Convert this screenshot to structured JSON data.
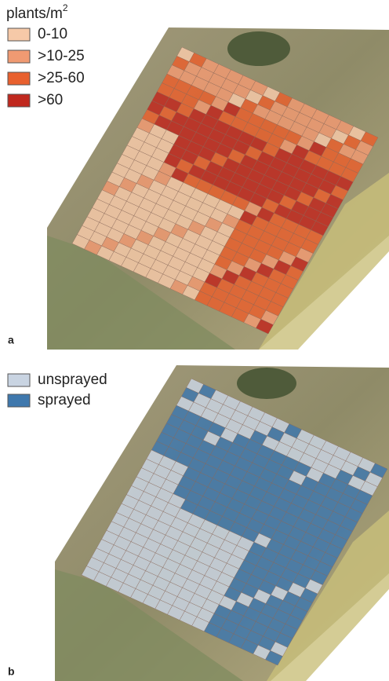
{
  "panel_a": {
    "legend_title": "plants/m",
    "legend_title_superscript": "2",
    "legend": [
      {
        "label": "0-10",
        "color": "#f6c9a8"
      },
      {
        "label": ">10-25",
        "color": "#f09a72"
      },
      {
        "label": ">25-60",
        "color": "#e8602e"
      },
      {
        "label": ">60",
        "color": "#c0281e"
      }
    ],
    "label": "a"
  },
  "panel_b": {
    "legend": [
      {
        "label": "unsprayed",
        "color": "#c9d4e2"
      },
      {
        "label": "sprayed",
        "color": "#3f78ad"
      }
    ],
    "label": "b"
  }
}
